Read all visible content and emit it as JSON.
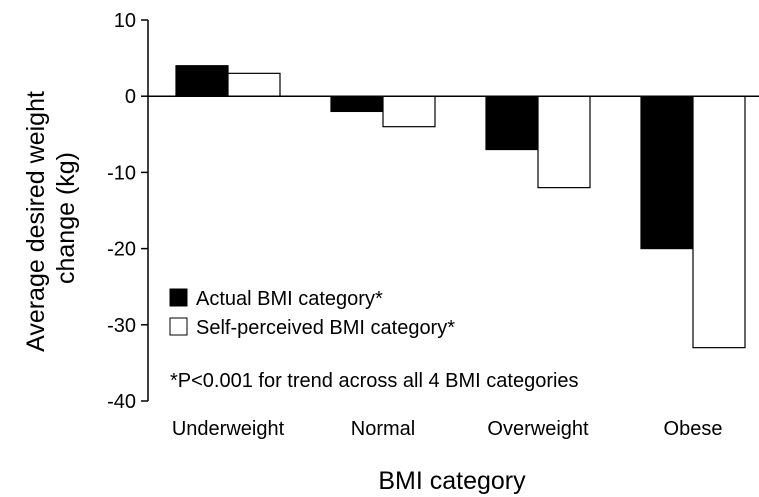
{
  "chart_data": {
    "type": "bar",
    "title": "",
    "xlabel": "BMI category",
    "ylabel_lines": [
      "Average desired weight",
      "change (kg)"
    ],
    "categories": [
      "Underweight",
      "Normal",
      "Overweight",
      "Obese"
    ],
    "series": [
      {
        "name": "Actual BMI category*",
        "values": [
          4,
          -2,
          -7,
          -20
        ],
        "color": "#000000"
      },
      {
        "name": "Self-perceived BMI category*",
        "values": [
          3,
          -4,
          -12,
          -33
        ],
        "color": "#ffffff"
      }
    ],
    "ylim": [
      -40,
      10
    ],
    "yticks": [
      10,
      0,
      -10,
      -20,
      -30,
      -40
    ],
    "ytick_labels": [
      "10",
      "0",
      "-10",
      "-20",
      "-30",
      "-40"
    ],
    "annotation": "*P<0.001 for trend across all 4 BMI categories",
    "legend_position": "lower-left",
    "grid": false,
    "bar_edge_color": "#000000"
  }
}
